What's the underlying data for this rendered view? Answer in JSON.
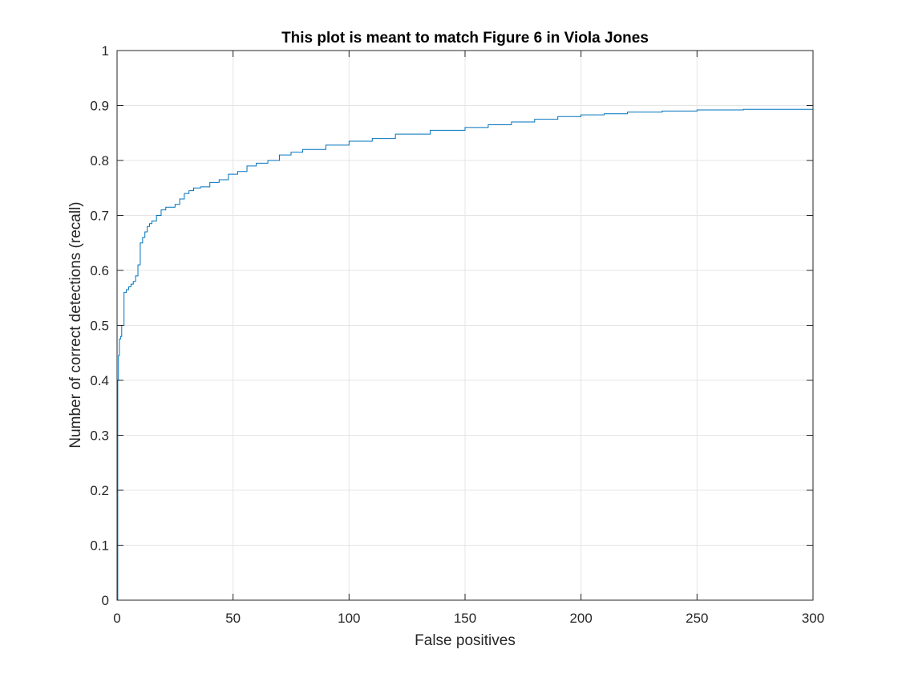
{
  "chart_data": {
    "type": "line",
    "title": "This plot is meant to match Figure 6 in Viola Jones",
    "xlabel": "False positives",
    "ylabel": "Number of correct detections (recall)",
    "xlim": [
      0,
      300
    ],
    "ylim": [
      0,
      1
    ],
    "x_ticks": [
      "0",
      "50",
      "100",
      "150",
      "200",
      "250",
      "300"
    ],
    "y_ticks": [
      "0",
      "0.1",
      "0.2",
      "0.3",
      "0.4",
      "0.5",
      "0.6",
      "0.7",
      "0.8",
      "0.9",
      "1"
    ],
    "grid": true,
    "legend": "none",
    "colors": {
      "line": "#0072BD",
      "grid": "#e5e5e5",
      "axes": "#262626"
    },
    "series": [
      {
        "step": true,
        "x": [
          0,
          0.3,
          0.6,
          1,
          1.5,
          2,
          3,
          4,
          5,
          6,
          7,
          8,
          9,
          10,
          11,
          12,
          13,
          14,
          15,
          17,
          19,
          21,
          23,
          25,
          27,
          29,
          31,
          33,
          36,
          40,
          44,
          48,
          52,
          56,
          60,
          65,
          70,
          75,
          80,
          90,
          100,
          110,
          120,
          135,
          150,
          160,
          170,
          180,
          190,
          200,
          210,
          220,
          235,
          250,
          270,
          300
        ],
        "y": [
          0,
          0.4,
          0.445,
          0.475,
          0.48,
          0.5,
          0.56,
          0.565,
          0.57,
          0.575,
          0.58,
          0.59,
          0.61,
          0.65,
          0.66,
          0.67,
          0.68,
          0.685,
          0.69,
          0.7,
          0.71,
          0.715,
          0.715,
          0.72,
          0.73,
          0.74,
          0.745,
          0.75,
          0.752,
          0.76,
          0.765,
          0.775,
          0.78,
          0.79,
          0.795,
          0.8,
          0.81,
          0.815,
          0.82,
          0.828,
          0.835,
          0.84,
          0.848,
          0.855,
          0.86,
          0.865,
          0.87,
          0.875,
          0.88,
          0.883,
          0.885,
          0.888,
          0.89,
          0.892,
          0.893,
          0.894
        ]
      }
    ]
  }
}
